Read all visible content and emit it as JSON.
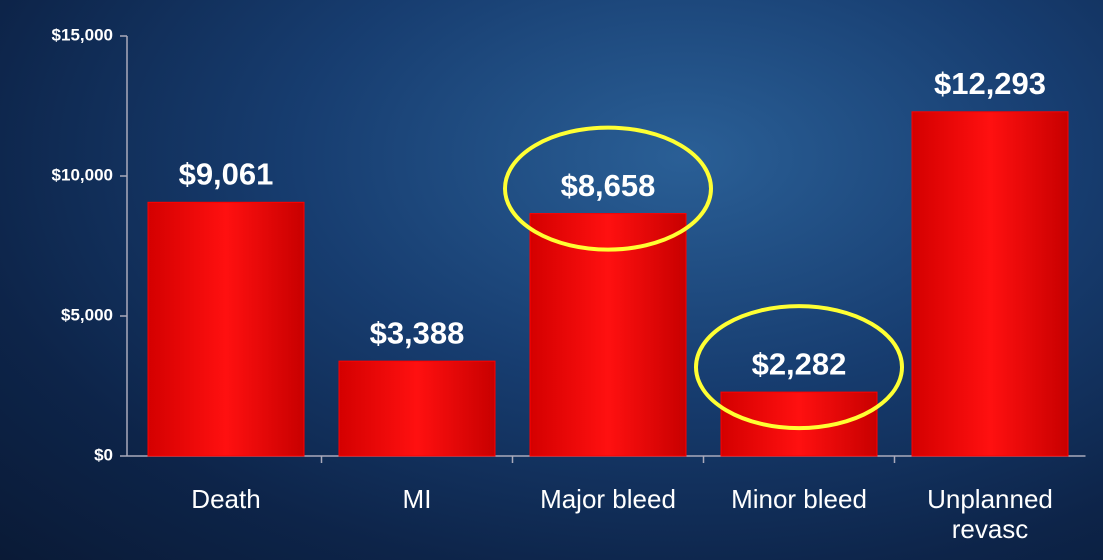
{
  "chart_data": {
    "type": "bar",
    "categories": [
      "Death",
      "MI",
      "Major bleed",
      "Minor bleed",
      "Unplanned revasc"
    ],
    "values": [
      9061,
      3388,
      8658,
      2282,
      12293
    ],
    "value_labels": [
      "$9,061",
      "$3,388",
      "$8,658",
      "$2,282",
      "$12,293"
    ],
    "color": "#ff0000",
    "highlight": [
      2,
      3
    ],
    "highlight_color": "#ffff33",
    "ylim": [
      0,
      15000
    ],
    "yticks": [
      {
        "value": 0,
        "label": "$0"
      },
      {
        "value": 5000,
        "label": "$5,000"
      },
      {
        "value": 10000,
        "label": "$10,000"
      },
      {
        "value": 15000,
        "label": "$15,000"
      }
    ],
    "grid": false
  }
}
